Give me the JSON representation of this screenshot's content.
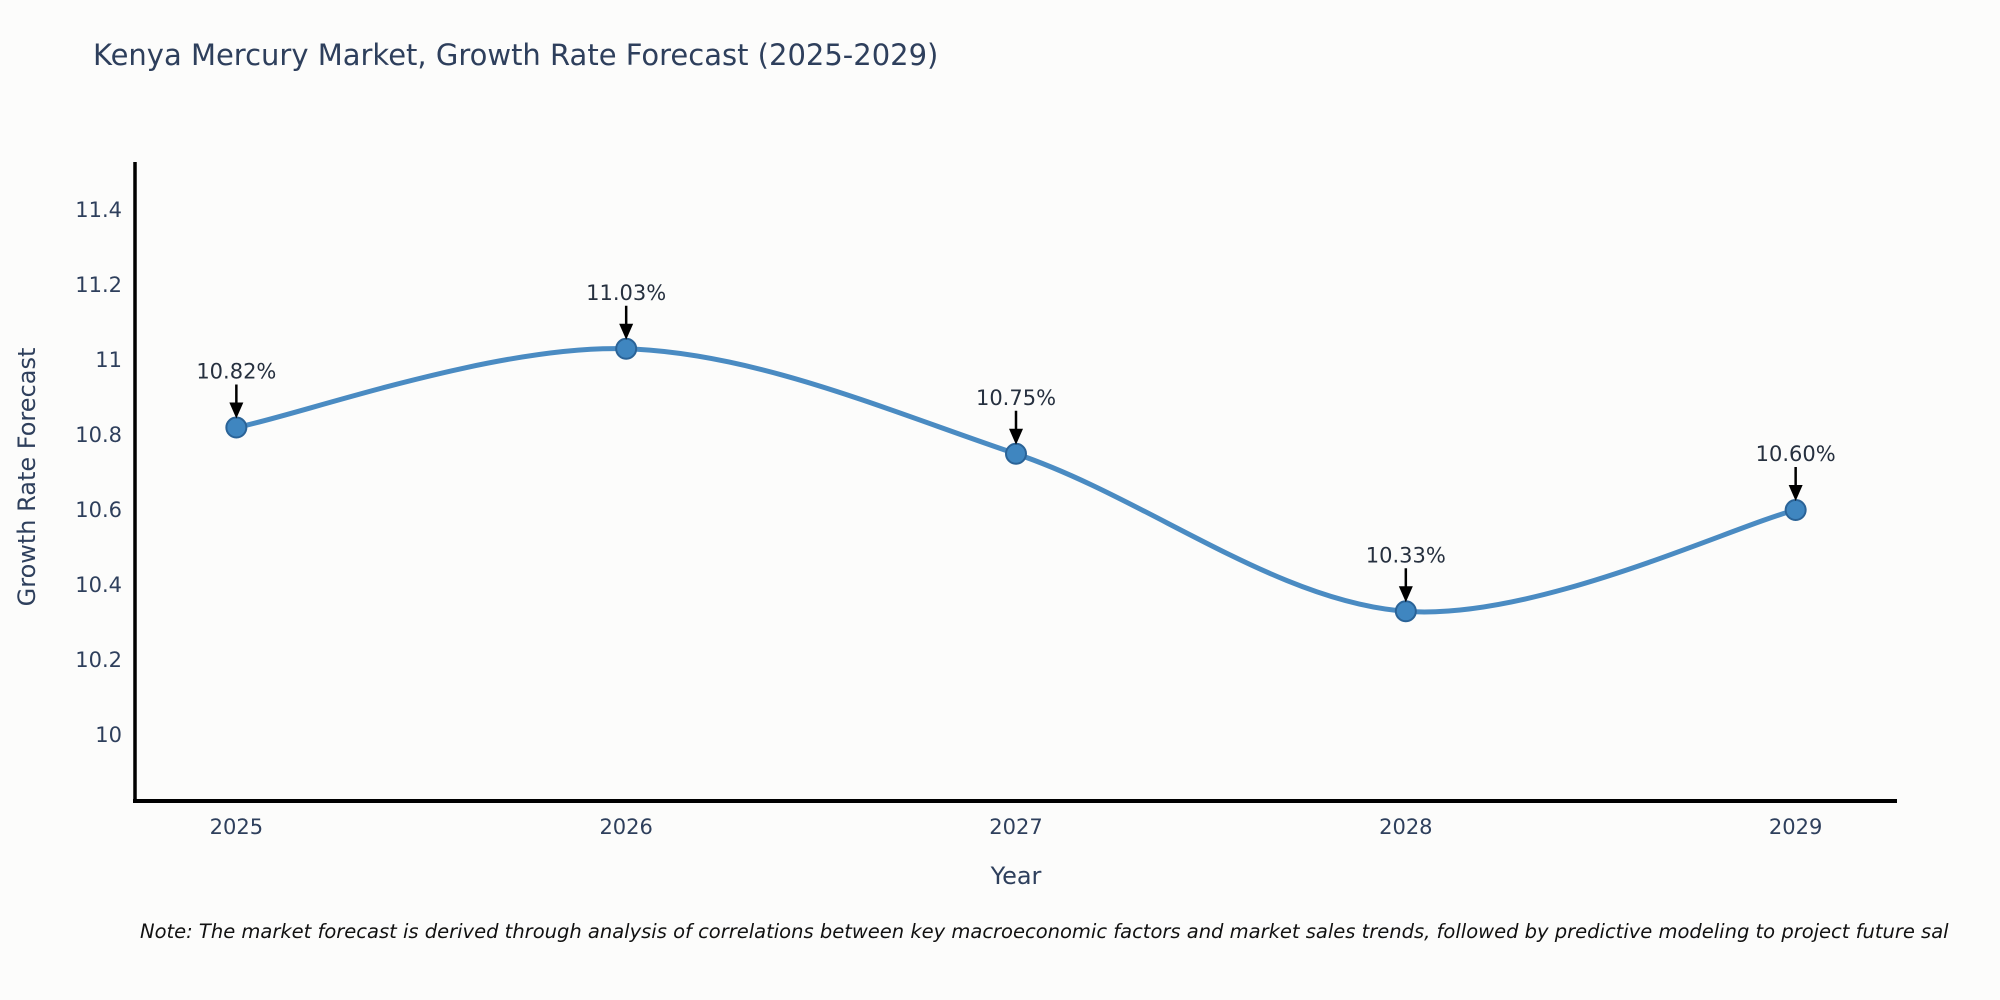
{
  "chart_data": {
    "type": "line",
    "title": "Kenya Mercury Market, Growth Rate Forecast (2025-2029)",
    "xlabel": "Year",
    "ylabel": "Growth Rate Forecast",
    "x": [
      2025,
      2026,
      2027,
      2028,
      2029
    ],
    "series": [
      {
        "name": "Growth Rate Forecast",
        "values": [
          10.82,
          11.03,
          10.75,
          10.33,
          10.6
        ],
        "point_labels": [
          "10.82%",
          "11.03%",
          "10.75%",
          "10.33%",
          "10.60%"
        ]
      }
    ],
    "yticks": [
      10,
      10.2,
      10.4,
      10.6,
      10.8,
      11,
      11.2,
      11.4
    ],
    "ylim": [
      9.824,
      11.528
    ],
    "xlim": [
      2024.74,
      2029.26
    ],
    "grid": false,
    "legend": "none",
    "curve": "smooth",
    "colors": {
      "line": "#4a8bc2",
      "marker_fill": "#3f86c0",
      "marker_edge": "#2a6397",
      "axis": "#000000",
      "tick_text": "#2e3f5c",
      "annotation_text": "#26303f",
      "arrow": "#000000"
    }
  },
  "footnote": "Note: The market forecast is derived through analysis of correlations between key macroeconomic factors and market sales trends, followed by predictive modeling to project future sal"
}
